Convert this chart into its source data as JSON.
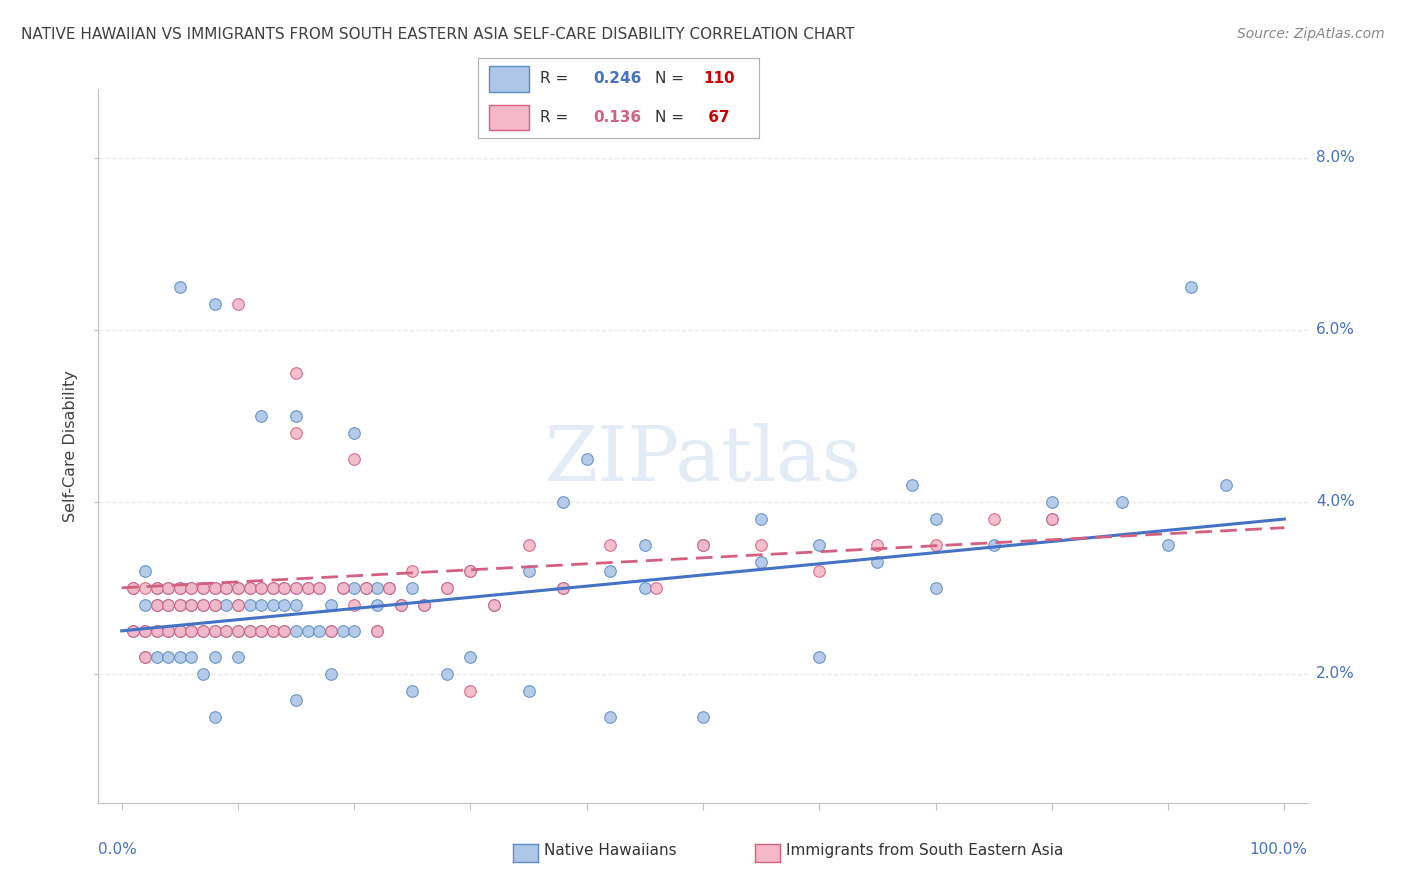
{
  "title": "NATIVE HAWAIIAN VS IMMIGRANTS FROM SOUTH EASTERN ASIA SELF-CARE DISABILITY CORRELATION CHART",
  "source": "Source: ZipAtlas.com",
  "ylabel": "Self-Care Disability",
  "watermark": "ZIPatlas",
  "legend_box": {
    "blue_R": "0.246",
    "blue_N": "110",
    "pink_R": "0.136",
    "pink_N": " 67"
  },
  "yticks": [
    "2.0%",
    "4.0%",
    "6.0%",
    "8.0%"
  ],
  "ytick_vals": [
    0.02,
    0.04,
    0.06,
    0.08
  ],
  "ylim": [
    0.005,
    0.088
  ],
  "xlim": [
    -0.02,
    1.02
  ],
  "blue_color": "#aec6e8",
  "blue_edge_color": "#5b8ec4",
  "blue_line_color": "#4472c4",
  "pink_color": "#f5b8c8",
  "pink_edge_color": "#d46080",
  "pink_line_color": "#d46080",
  "title_color": "#404040",
  "source_color": "#888888",
  "axis_label_color": "#4472c4",
  "grid_color": "#e8e8e8",
  "grid_style": "--",
  "background_color": "#ffffff",
  "blue_trend_start": 0.025,
  "blue_trend_end": 0.038,
  "pink_trend_start": 0.03,
  "pink_trend_end": 0.037,
  "blue_scatter_x": [
    0.01,
    0.01,
    0.02,
    0.02,
    0.02,
    0.02,
    0.03,
    0.03,
    0.03,
    0.03,
    0.04,
    0.04,
    0.04,
    0.04,
    0.05,
    0.05,
    0.05,
    0.05,
    0.06,
    0.06,
    0.06,
    0.06,
    0.07,
    0.07,
    0.07,
    0.07,
    0.08,
    0.08,
    0.08,
    0.08,
    0.09,
    0.09,
    0.09,
    0.1,
    0.1,
    0.1,
    0.1,
    0.11,
    0.11,
    0.11,
    0.12,
    0.12,
    0.12,
    0.13,
    0.13,
    0.13,
    0.14,
    0.14,
    0.14,
    0.15,
    0.15,
    0.15,
    0.16,
    0.16,
    0.17,
    0.17,
    0.18,
    0.18,
    0.19,
    0.19,
    0.2,
    0.2,
    0.21,
    0.22,
    0.22,
    0.23,
    0.24,
    0.25,
    0.26,
    0.28,
    0.3,
    0.32,
    0.35,
    0.38,
    0.42,
    0.45,
    0.5,
    0.55,
    0.6,
    0.65,
    0.7,
    0.75,
    0.8,
    0.86,
    0.9,
    0.95,
    0.05,
    0.08,
    0.12,
    0.15,
    0.18,
    0.22,
    0.28,
    0.35,
    0.42,
    0.5,
    0.6,
    0.7,
    0.8,
    0.92,
    0.3,
    0.2,
    0.4,
    0.55,
    0.68,
    0.45,
    0.38,
    0.25,
    0.15,
    0.08
  ],
  "blue_scatter_y": [
    0.03,
    0.025,
    0.028,
    0.025,
    0.032,
    0.022,
    0.03,
    0.025,
    0.028,
    0.022,
    0.028,
    0.025,
    0.03,
    0.022,
    0.028,
    0.025,
    0.03,
    0.022,
    0.03,
    0.025,
    0.028,
    0.022,
    0.03,
    0.025,
    0.028,
    0.02,
    0.03,
    0.025,
    0.028,
    0.022,
    0.03,
    0.025,
    0.028,
    0.03,
    0.025,
    0.028,
    0.022,
    0.03,
    0.025,
    0.028,
    0.03,
    0.025,
    0.028,
    0.03,
    0.025,
    0.028,
    0.03,
    0.025,
    0.028,
    0.03,
    0.025,
    0.028,
    0.03,
    0.025,
    0.03,
    0.025,
    0.028,
    0.025,
    0.03,
    0.025,
    0.03,
    0.025,
    0.03,
    0.03,
    0.025,
    0.03,
    0.028,
    0.03,
    0.028,
    0.03,
    0.032,
    0.028,
    0.032,
    0.03,
    0.032,
    0.03,
    0.035,
    0.033,
    0.035,
    0.033,
    0.038,
    0.035,
    0.038,
    0.04,
    0.035,
    0.042,
    0.065,
    0.063,
    0.05,
    0.05,
    0.02,
    0.028,
    0.02,
    0.018,
    0.015,
    0.015,
    0.022,
    0.03,
    0.04,
    0.065,
    0.022,
    0.048,
    0.045,
    0.038,
    0.042,
    0.035,
    0.04,
    0.018,
    0.017,
    0.015
  ],
  "pink_scatter_x": [
    0.01,
    0.01,
    0.02,
    0.02,
    0.02,
    0.03,
    0.03,
    0.03,
    0.04,
    0.04,
    0.04,
    0.05,
    0.05,
    0.05,
    0.06,
    0.06,
    0.06,
    0.07,
    0.07,
    0.07,
    0.08,
    0.08,
    0.08,
    0.09,
    0.09,
    0.1,
    0.1,
    0.1,
    0.11,
    0.11,
    0.12,
    0.12,
    0.13,
    0.13,
    0.14,
    0.14,
    0.15,
    0.15,
    0.16,
    0.17,
    0.18,
    0.19,
    0.2,
    0.21,
    0.22,
    0.23,
    0.24,
    0.25,
    0.26,
    0.28,
    0.3,
    0.32,
    0.35,
    0.38,
    0.42,
    0.46,
    0.5,
    0.55,
    0.6,
    0.65,
    0.7,
    0.75,
    0.8,
    0.1,
    0.15,
    0.2,
    0.3
  ],
  "pink_scatter_y": [
    0.03,
    0.025,
    0.03,
    0.025,
    0.022,
    0.03,
    0.025,
    0.028,
    0.03,
    0.025,
    0.028,
    0.03,
    0.025,
    0.028,
    0.03,
    0.025,
    0.028,
    0.03,
    0.025,
    0.028,
    0.03,
    0.025,
    0.028,
    0.03,
    0.025,
    0.03,
    0.025,
    0.028,
    0.03,
    0.025,
    0.03,
    0.025,
    0.03,
    0.025,
    0.03,
    0.025,
    0.03,
    0.055,
    0.03,
    0.03,
    0.025,
    0.03,
    0.028,
    0.03,
    0.025,
    0.03,
    0.028,
    0.032,
    0.028,
    0.03,
    0.032,
    0.028,
    0.035,
    0.03,
    0.035,
    0.03,
    0.035,
    0.035,
    0.032,
    0.035,
    0.035,
    0.038,
    0.038,
    0.063,
    0.048,
    0.045,
    0.018
  ]
}
